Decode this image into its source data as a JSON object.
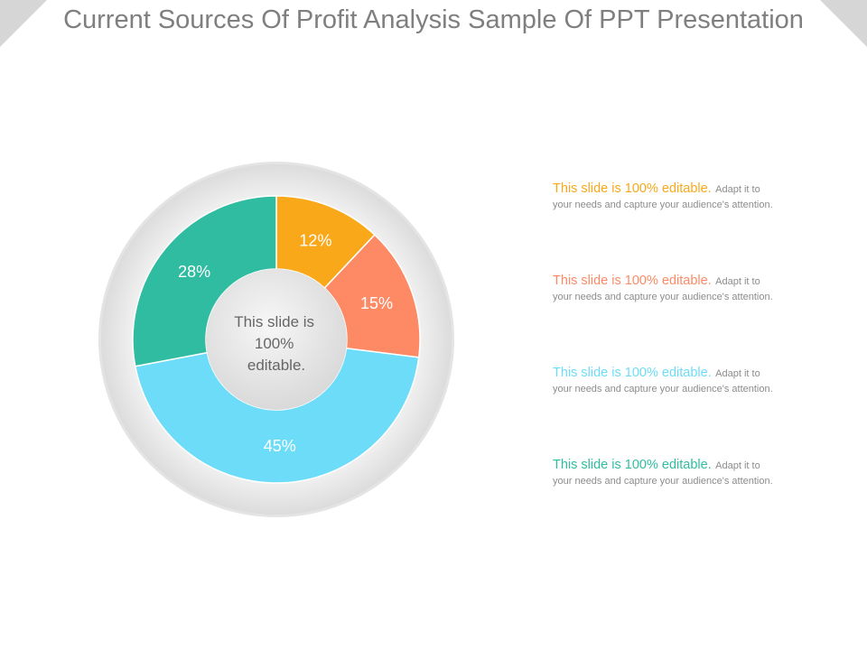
{
  "slide": {
    "title": "Current Sources Of Profit Analysis Sample Of PPT Presentation"
  },
  "chart_data": {
    "type": "pie",
    "style": "donut",
    "center_label": [
      "This slide is",
      "100%",
      "editable."
    ],
    "slices": [
      {
        "value": 12,
        "label": "12%",
        "color": "#f9a81a"
      },
      {
        "value": 15,
        "label": "15%",
        "color": "#fd8a65"
      },
      {
        "value": 45,
        "label": "45%",
        "color": "#6ddcf8"
      },
      {
        "value": 28,
        "label": "28%",
        "color": "#2fbca0"
      }
    ]
  },
  "notes": [
    {
      "heading": "This slide is 100% editable.",
      "body_1": "Adapt it to",
      "body_2": "your needs and capture your audience's attention.",
      "color": "#f9a81a"
    },
    {
      "heading": "This slide is 100% editable.",
      "body_1": "Adapt it to",
      "body_2": "your needs and capture your audience's attention.",
      "color": "#fd8a65"
    },
    {
      "heading": "This slide is 100% editable.",
      "body_1": "Adapt it to",
      "body_2": "your needs and capture your audience's attention.",
      "color": "#6ddcf8"
    },
    {
      "heading": "This slide is 100% editable.",
      "body_1": "Adapt it to",
      "body_2": "your needs and capture your audience's attention.",
      "color": "#2fbca0"
    }
  ]
}
